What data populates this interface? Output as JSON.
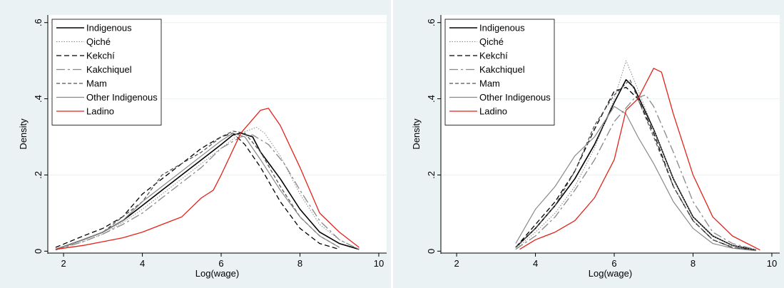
{
  "colors": {
    "background": "#eaf2f3",
    "plot_bg": "#ffffff",
    "grid": "#eaf2f3",
    "black": "#000000",
    "dark_gray": "#555555",
    "gray": "#888888",
    "ladino": "#e2231a"
  },
  "legend_items": [
    "Indigenous",
    "Qiché",
    "Kekchí",
    "Kakchiquel",
    "Mam",
    "Other Indigenous",
    "Ladino"
  ],
  "chart_data": [
    {
      "type": "line",
      "xlabel": "Log(wage)",
      "ylabel": "Density",
      "xlim": [
        1.6,
        10.2
      ],
      "ylim": [
        -0.005,
        0.62
      ],
      "xticks": [
        "2",
        "4",
        "6",
        "8",
        "10"
      ],
      "yticks": [
        "0",
        ".2",
        ".4",
        ".6"
      ],
      "grid": true,
      "legend_position": "top-left",
      "series": [
        {
          "name": "Indigenous",
          "points": [
            [
              1.8,
              0.005
            ],
            [
              2.5,
              0.03
            ],
            [
              3.0,
              0.05
            ],
            [
              3.5,
              0.08
            ],
            [
              4.0,
              0.12
            ],
            [
              4.5,
              0.16
            ],
            [
              5.0,
              0.2
            ],
            [
              5.5,
              0.24
            ],
            [
              6.0,
              0.28
            ],
            [
              6.3,
              0.305
            ],
            [
              6.5,
              0.31
            ],
            [
              6.8,
              0.3
            ],
            [
              7.0,
              0.26
            ],
            [
              7.5,
              0.19
            ],
            [
              8.0,
              0.11
            ],
            [
              8.5,
              0.05
            ],
            [
              9.0,
              0.02
            ],
            [
              9.5,
              0.005
            ]
          ]
        },
        {
          "name": "Qiché",
          "points": [
            [
              1.8,
              0.005
            ],
            [
              2.5,
              0.025
            ],
            [
              3.0,
              0.045
            ],
            [
              3.5,
              0.075
            ],
            [
              4.0,
              0.11
            ],
            [
              4.5,
              0.15
            ],
            [
              5.0,
              0.19
            ],
            [
              5.5,
              0.23
            ],
            [
              6.0,
              0.27
            ],
            [
              6.5,
              0.31
            ],
            [
              6.9,
              0.325
            ],
            [
              7.1,
              0.31
            ],
            [
              7.5,
              0.25
            ],
            [
              8.0,
              0.15
            ],
            [
              8.5,
              0.07
            ],
            [
              9.0,
              0.03
            ],
            [
              9.5,
              0.005
            ]
          ]
        },
        {
          "name": "Kekchí",
          "points": [
            [
              1.8,
              0.01
            ],
            [
              2.5,
              0.04
            ],
            [
              3.0,
              0.06
            ],
            [
              3.5,
              0.09
            ],
            [
              4.0,
              0.15
            ],
            [
              4.5,
              0.19
            ],
            [
              5.0,
              0.23
            ],
            [
              5.5,
              0.27
            ],
            [
              6.0,
              0.3
            ],
            [
              6.3,
              0.31
            ],
            [
              6.6,
              0.28
            ],
            [
              7.0,
              0.22
            ],
            [
              7.5,
              0.13
            ],
            [
              8.0,
              0.06
            ],
            [
              8.5,
              0.02
            ],
            [
              9.0,
              0.005
            ]
          ]
        },
        {
          "name": "Kakchiquel",
          "points": [
            [
              1.8,
              0.003
            ],
            [
              2.5,
              0.025
            ],
            [
              3.0,
              0.045
            ],
            [
              3.5,
              0.07
            ],
            [
              4.0,
              0.1
            ],
            [
              4.5,
              0.14
            ],
            [
              5.0,
              0.18
            ],
            [
              5.5,
              0.22
            ],
            [
              6.0,
              0.27
            ],
            [
              6.5,
              0.3
            ],
            [
              6.8,
              0.305
            ],
            [
              7.2,
              0.28
            ],
            [
              7.6,
              0.23
            ],
            [
              8.0,
              0.16
            ],
            [
              8.5,
              0.08
            ],
            [
              9.0,
              0.03
            ],
            [
              9.5,
              0.005
            ]
          ]
        },
        {
          "name": "Mam",
          "points": [
            [
              1.8,
              0.005
            ],
            [
              2.5,
              0.03
            ],
            [
              3.0,
              0.05
            ],
            [
              3.5,
              0.09
            ],
            [
              4.0,
              0.13
            ],
            [
              4.5,
              0.2
            ],
            [
              5.0,
              0.23
            ],
            [
              5.5,
              0.26
            ],
            [
              6.0,
              0.3
            ],
            [
              6.3,
              0.315
            ],
            [
              6.6,
              0.31
            ],
            [
              7.0,
              0.26
            ],
            [
              7.5,
              0.17
            ],
            [
              8.0,
              0.09
            ],
            [
              8.5,
              0.04
            ],
            [
              9.0,
              0.01
            ]
          ]
        },
        {
          "name": "Other Indigenous",
          "points": [
            [
              1.8,
              0.005
            ],
            [
              2.5,
              0.03
            ],
            [
              3.0,
              0.05
            ],
            [
              3.5,
              0.08
            ],
            [
              4.0,
              0.13
            ],
            [
              4.5,
              0.17
            ],
            [
              5.0,
              0.21
            ],
            [
              5.5,
              0.25
            ],
            [
              6.0,
              0.29
            ],
            [
              6.3,
              0.31
            ],
            [
              6.6,
              0.3
            ],
            [
              7.0,
              0.24
            ],
            [
              7.5,
              0.16
            ],
            [
              8.0,
              0.09
            ],
            [
              8.5,
              0.04
            ],
            [
              9.0,
              0.01
            ]
          ]
        },
        {
          "name": "Ladino",
          "points": [
            [
              1.8,
              0.005
            ],
            [
              2.5,
              0.015
            ],
            [
              3.0,
              0.025
            ],
            [
              3.5,
              0.035
            ],
            [
              4.0,
              0.05
            ],
            [
              4.5,
              0.07
            ],
            [
              5.0,
              0.09
            ],
            [
              5.5,
              0.14
            ],
            [
              5.8,
              0.16
            ],
            [
              6.0,
              0.2
            ],
            [
              6.5,
              0.31
            ],
            [
              7.0,
              0.37
            ],
            [
              7.2,
              0.375
            ],
            [
              7.5,
              0.33
            ],
            [
              8.0,
              0.22
            ],
            [
              8.5,
              0.1
            ],
            [
              9.0,
              0.05
            ],
            [
              9.5,
              0.01
            ]
          ]
        }
      ]
    },
    {
      "type": "line",
      "xlabel": "Log(wage)",
      "ylabel": "Density",
      "xlim": [
        1.6,
        10.2
      ],
      "ylim": [
        -0.005,
        0.62
      ],
      "xticks": [
        "2",
        "4",
        "6",
        "8",
        "10"
      ],
      "yticks": [
        "0",
        ".2",
        ".4",
        ".6"
      ],
      "grid": true,
      "legend_position": "top-left",
      "series": [
        {
          "name": "Indigenous",
          "points": [
            [
              3.5,
              0.01
            ],
            [
              4.0,
              0.06
            ],
            [
              4.5,
              0.12
            ],
            [
              5.0,
              0.19
            ],
            [
              5.5,
              0.28
            ],
            [
              6.0,
              0.39
            ],
            [
              6.3,
              0.45
            ],
            [
              6.5,
              0.43
            ],
            [
              7.0,
              0.32
            ],
            [
              7.5,
              0.19
            ],
            [
              8.0,
              0.09
            ],
            [
              8.5,
              0.04
            ],
            [
              9.0,
              0.015
            ],
            [
              9.6,
              0.003
            ]
          ]
        },
        {
          "name": "Qiché",
          "points": [
            [
              3.5,
              0.005
            ],
            [
              4.0,
              0.05
            ],
            [
              4.5,
              0.1
            ],
            [
              5.0,
              0.17
            ],
            [
              5.5,
              0.27
            ],
            [
              6.0,
              0.4
            ],
            [
              6.3,
              0.5
            ],
            [
              6.5,
              0.45
            ],
            [
              7.0,
              0.32
            ],
            [
              7.5,
              0.19
            ],
            [
              8.0,
              0.09
            ],
            [
              8.5,
              0.04
            ],
            [
              9.0,
              0.015
            ],
            [
              9.6,
              0.003
            ]
          ]
        },
        {
          "name": "Kekchí",
          "points": [
            [
              3.5,
              0.01
            ],
            [
              4.0,
              0.07
            ],
            [
              4.5,
              0.13
            ],
            [
              5.0,
              0.21
            ],
            [
              5.5,
              0.32
            ],
            [
              6.0,
              0.42
            ],
            [
              6.3,
              0.43
            ],
            [
              6.6,
              0.4
            ],
            [
              7.0,
              0.31
            ],
            [
              7.5,
              0.17
            ],
            [
              8.0,
              0.08
            ],
            [
              8.5,
              0.03
            ],
            [
              9.0,
              0.01
            ],
            [
              9.6,
              0.002
            ]
          ]
        },
        {
          "name": "Kakchiquel",
          "points": [
            [
              3.5,
              0.005
            ],
            [
              4.0,
              0.04
            ],
            [
              4.5,
              0.09
            ],
            [
              5.0,
              0.16
            ],
            [
              5.5,
              0.24
            ],
            [
              6.0,
              0.34
            ],
            [
              6.5,
              0.4
            ],
            [
              6.8,
              0.41
            ],
            [
              7.0,
              0.38
            ],
            [
              7.5,
              0.26
            ],
            [
              8.0,
              0.13
            ],
            [
              8.5,
              0.05
            ],
            [
              9.0,
              0.02
            ],
            [
              9.6,
              0.004
            ]
          ]
        },
        {
          "name": "Mam",
          "points": [
            [
              3.5,
              0.01
            ],
            [
              4.0,
              0.06
            ],
            [
              4.5,
              0.12
            ],
            [
              5.0,
              0.21
            ],
            [
              5.5,
              0.33
            ],
            [
              6.0,
              0.41
            ],
            [
              6.4,
              0.45
            ],
            [
              6.6,
              0.4
            ],
            [
              7.0,
              0.3
            ],
            [
              7.5,
              0.17
            ],
            [
              8.0,
              0.08
            ],
            [
              8.5,
              0.03
            ],
            [
              9.0,
              0.01
            ],
            [
              9.6,
              0.002
            ]
          ]
        },
        {
          "name": "Other Indigenous",
          "points": [
            [
              3.5,
              0.02
            ],
            [
              4.0,
              0.11
            ],
            [
              4.5,
              0.17
            ],
            [
              5.0,
              0.25
            ],
            [
              5.5,
              0.3
            ],
            [
              6.0,
              0.38
            ],
            [
              6.3,
              0.36
            ],
            [
              6.6,
              0.3
            ],
            [
              7.0,
              0.23
            ],
            [
              7.5,
              0.13
            ],
            [
              8.0,
              0.06
            ],
            [
              8.5,
              0.02
            ],
            [
              9.0,
              0.008
            ],
            [
              9.6,
              0.001
            ]
          ]
        },
        {
          "name": "Ladino",
          "points": [
            [
              3.6,
              0.005
            ],
            [
              4.0,
              0.03
            ],
            [
              4.5,
              0.05
            ],
            [
              5.0,
              0.08
            ],
            [
              5.5,
              0.14
            ],
            [
              6.0,
              0.24
            ],
            [
              6.3,
              0.37
            ],
            [
              6.6,
              0.4
            ],
            [
              7.0,
              0.48
            ],
            [
              7.2,
              0.47
            ],
            [
              7.5,
              0.36
            ],
            [
              8.0,
              0.2
            ],
            [
              8.5,
              0.09
            ],
            [
              9.0,
              0.04
            ],
            [
              9.7,
              0.003
            ]
          ]
        }
      ]
    }
  ]
}
